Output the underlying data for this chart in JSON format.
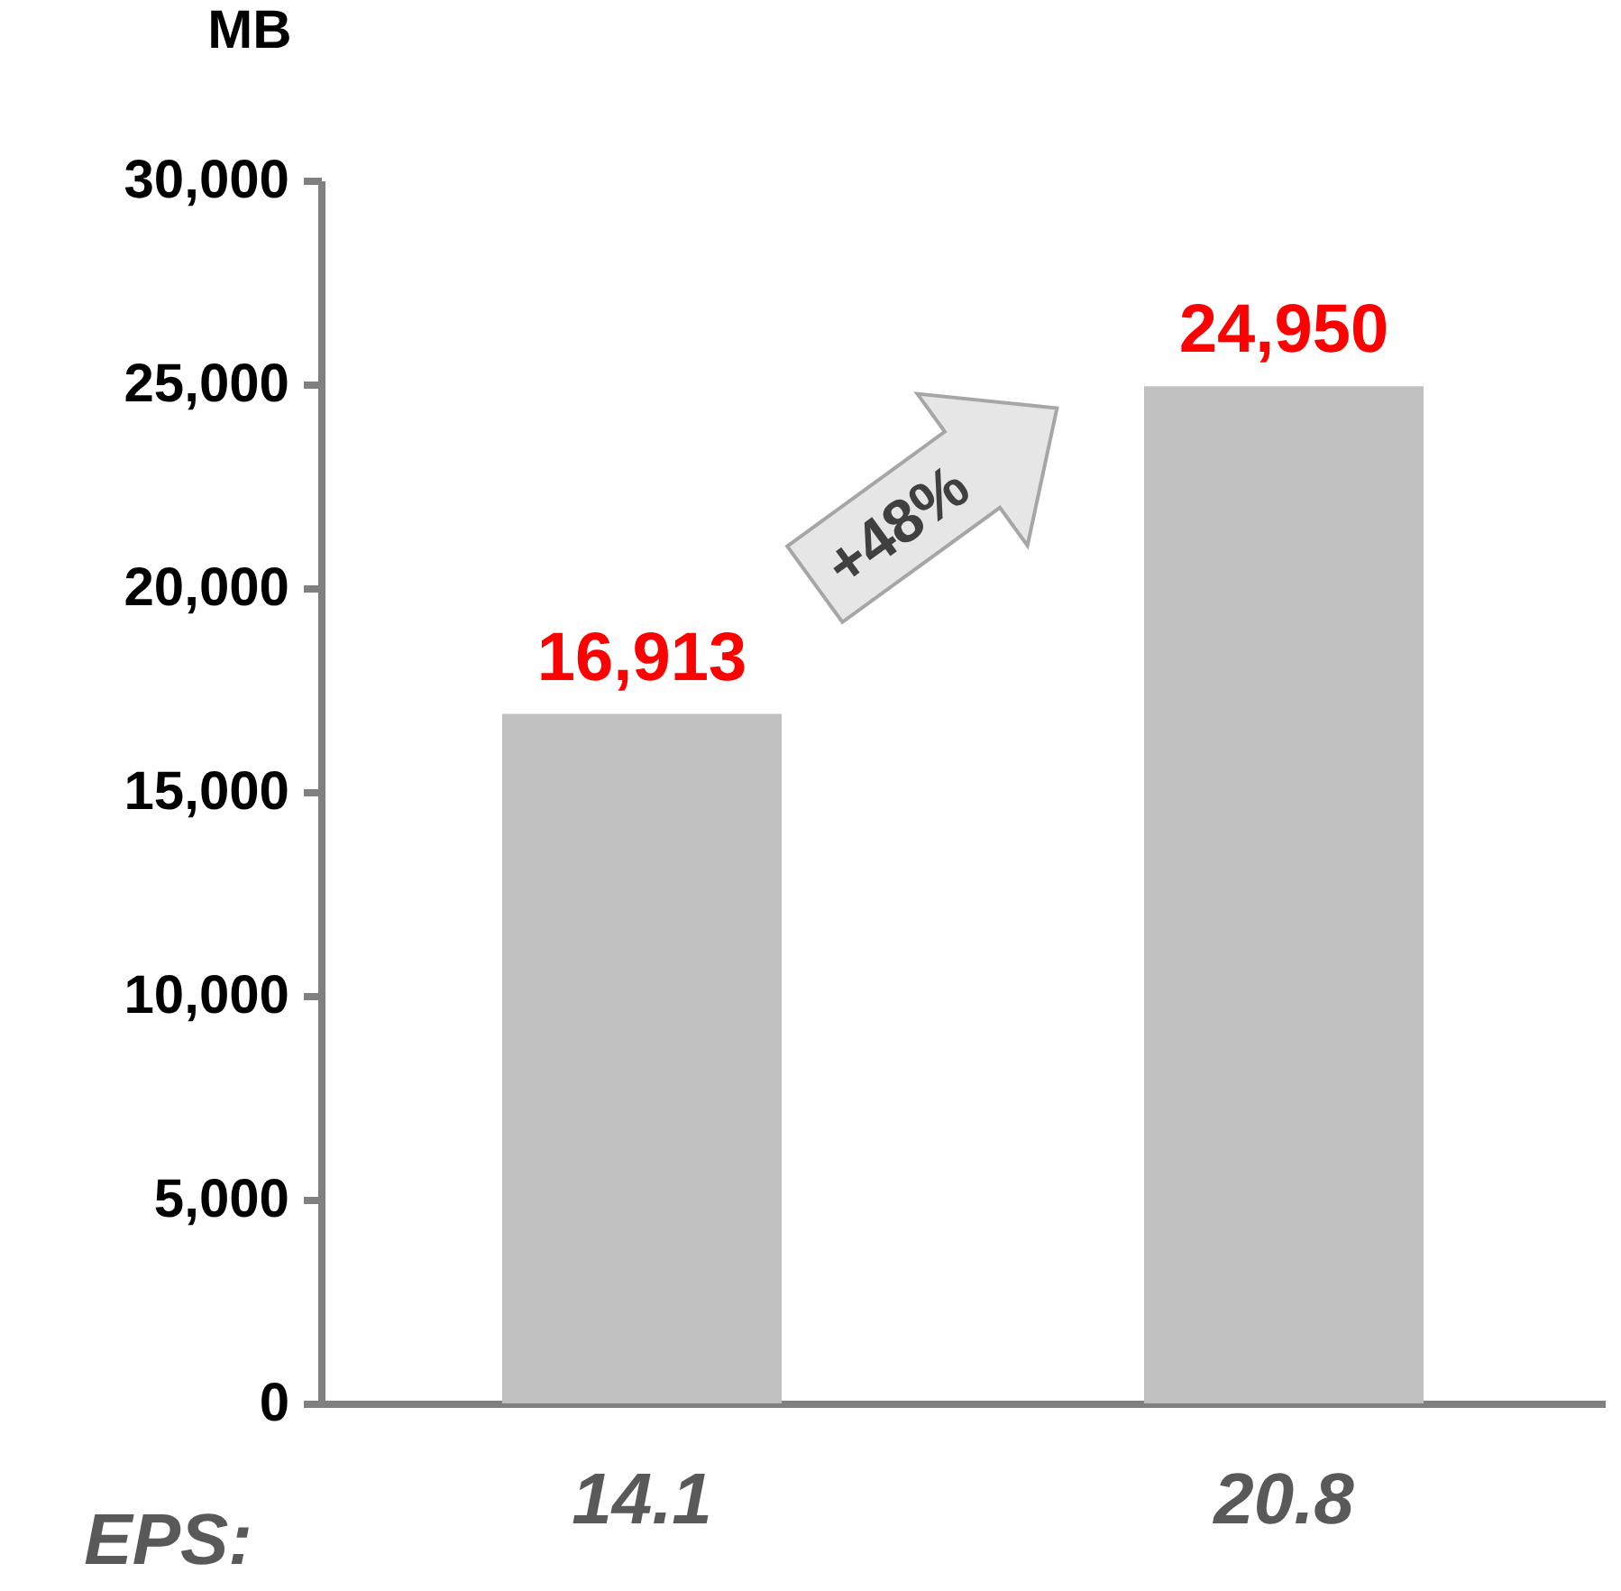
{
  "chart_data": {
    "type": "bar",
    "ylabel": "MB",
    "categories": [
      "14.1",
      "20.8"
    ],
    "values": [
      16913,
      24950
    ],
    "color": "#c0c0c0",
    "value_labels": [
      "16,913",
      "24,950"
    ],
    "ylim": [
      0,
      30000
    ],
    "yticks": [
      0,
      {
        "value": 5000,
        "label": "5,000"
      },
      {
        "value": 10000,
        "label": "10,000"
      },
      {
        "value": 15000,
        "label": "15,000"
      },
      {
        "value": 20000,
        "label": "20,000"
      },
      {
        "value": 25000,
        "label": "25,000"
      },
      {
        "value": 30000,
        "label": "30,000"
      }
    ],
    "grid": false,
    "annotations": [
      "+48%",
      "EPS:"
    ]
  }
}
